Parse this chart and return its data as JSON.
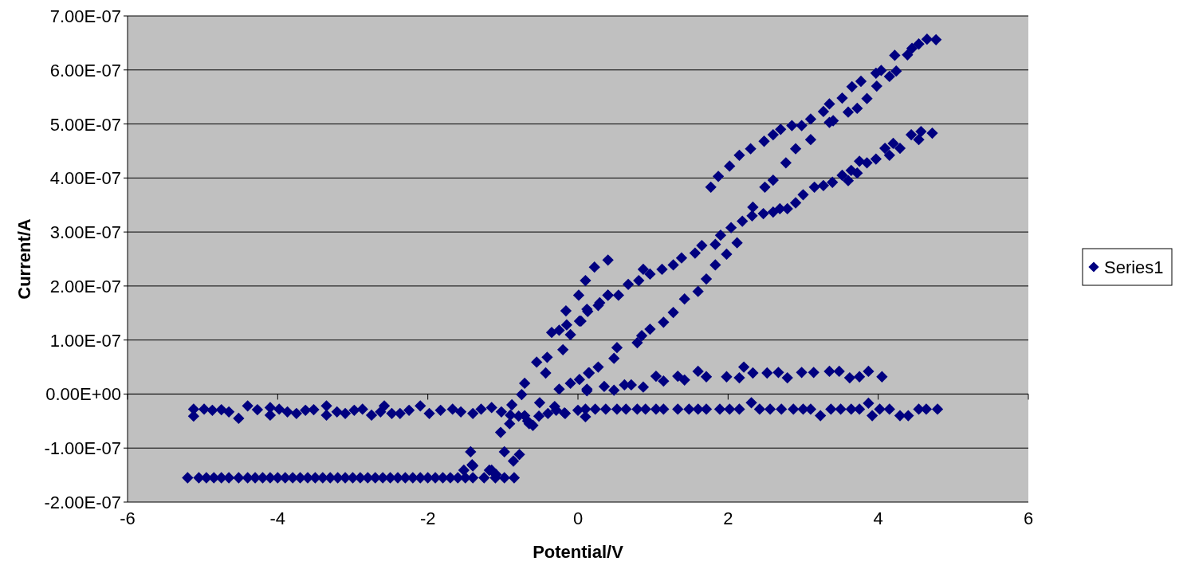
{
  "chart_data": {
    "type": "scatter",
    "xlabel": "Potential/V",
    "ylabel": "Current/A",
    "legend": "right",
    "grid": "y",
    "marker": "diamond",
    "xlim": [
      -6,
      6
    ],
    "xticks": [
      -6,
      -4,
      -2,
      0,
      2,
      4,
      6
    ],
    "ylim": [
      -2e-07,
      7e-07
    ],
    "yticks": [
      {
        "value": -2e-07,
        "label": "-2.00E-07"
      },
      {
        "value": -1e-07,
        "label": "-1.00E-07"
      },
      {
        "value": 0,
        "label": "0.00E+00"
      },
      {
        "value": 1e-07,
        "label": "1.00E-07"
      },
      {
        "value": 2e-07,
        "label": "2.00E-07"
      },
      {
        "value": 3e-07,
        "label": "3.00E-07"
      },
      {
        "value": 4e-07,
        "label": "4.00E-07"
      },
      {
        "value": 5e-07,
        "label": "5.00E-07"
      },
      {
        "value": 6e-07,
        "label": "6.00E-07"
      },
      {
        "value": 7e-07,
        "label": "7.00E-07"
      }
    ],
    "series": [
      {
        "name": "Series1",
        "color": "#000080",
        "x": [
          -5.12,
          -5.12,
          -4.98,
          -4.87,
          -4.75,
          -4.65,
          -4.52,
          -4.4,
          -4.27,
          -4.1,
          -4.1,
          -3.98,
          -3.87,
          -3.75,
          -3.63,
          -3.52,
          -3.35,
          -3.35,
          -3.21,
          -3.1,
          -2.98,
          -2.87,
          -2.75,
          -2.63,
          -2.58,
          -2.48,
          -2.37,
          -2.25,
          -2.1,
          -1.98,
          -1.83,
          -1.67,
          -1.56,
          -1.4,
          -1.29,
          -1.15,
          -1.02,
          -0.9,
          -0.79,
          -0.67,
          -0.6,
          -0.52,
          -0.4,
          -0.29,
          -0.17,
          -5.2,
          -5.05,
          -4.95,
          -4.85,
          -4.75,
          -4.65,
          -4.52,
          -4.4,
          -4.3,
          -4.2,
          -4.1,
          -4,
          -3.9,
          -3.8,
          -3.7,
          -3.6,
          -3.5,
          -3.4,
          -3.3,
          -3.2,
          -3.1,
          -3,
          -2.9,
          -2.8,
          -2.7,
          -2.6,
          -2.5,
          -2.4,
          -2.3,
          -2.2,
          -2.1,
          -2,
          -1.9,
          -1.8,
          -1.7,
          -1.6,
          -1.5,
          -1.4,
          -1.25,
          -1.1,
          -0.98,
          -0.85,
          -1.52,
          -1.4,
          -1.15,
          -1.09,
          -1.41,
          -1.43,
          -1.18,
          -1.03,
          -0.91,
          -0.98,
          -0.86,
          -0.78,
          -0.71,
          -0.55,
          -0.43,
          -0.41,
          -0.35,
          -0.25,
          -0.2,
          -0.1,
          -0.15,
          -0.16,
          0.02,
          0.01,
          0.1,
          0.22,
          0.4,
          0.12,
          0.29,
          0.4,
          -0.1,
          0.02,
          0.14,
          0.12,
          0,
          0.1,
          -0.18,
          -0.31,
          -0.51,
          -0.71,
          -0.65,
          -0.88,
          -0.75,
          -0.25,
          0.1,
          0.23,
          0.37,
          0.52,
          0.64,
          0.79,
          0.9,
          1.04,
          1.14,
          1.33,
          1.48,
          1.6,
          1.71,
          1.89,
          2.02,
          2.15,
          2.31,
          2.42,
          2.56,
          2.71,
          2.87,
          3,
          3.1,
          3.23,
          3.37,
          3.5,
          3.64,
          3.75,
          3.87,
          3.92,
          4.02,
          4.15,
          4.29,
          4.4,
          4.54,
          4.64,
          4.79,
          0.35,
          0.48,
          0.62,
          0.71,
          0.87,
          1.04,
          1.14,
          1.33,
          1.42,
          1.6,
          1.71,
          1.98,
          2.15,
          2.21,
          2.33,
          2.52,
          2.67,
          2.79,
          2.98,
          3.14,
          3.35,
          3.48,
          3.62,
          3.75,
          3.87,
          4.05,
          2.12,
          1.98,
          1.83,
          1.71,
          1.6,
          1.42,
          1.27,
          1.14,
          0.96,
          0.85,
          0.79,
          0.52,
          0.48,
          0.27,
          0.15,
          0.12,
          0.04,
          0.13,
          0.27,
          0.4,
          0.54,
          0.67,
          0.81,
          0.87,
          0.96,
          1.12,
          1.27,
          1.38,
          1.56,
          1.65,
          1.83,
          1.9,
          2.04,
          2.19,
          2.32,
          2.33,
          2.47,
          2.6,
          2.69,
          2.79,
          2.9,
          3,
          3.15,
          3.27,
          3.39,
          3.6,
          3.52,
          3.64,
          3.72,
          3.75,
          3.85,
          3.97,
          4.15,
          4.09,
          4.2,
          4.29,
          4.44,
          4.54,
          4.57,
          4.72,
          1.77,
          1.87,
          2.02,
          2.15,
          2.3,
          2.48,
          2.6,
          2.7,
          2.85,
          2.98,
          3.1,
          3.27,
          3.35,
          3.52,
          3.65,
          3.77,
          3.97,
          4.04,
          4.22,
          4.39,
          4.45,
          4.54,
          4.65,
          4.77,
          2.49,
          2.6,
          2.77,
          2.9,
          3.1,
          3.35,
          3.4,
          3.6,
          3.72,
          3.85,
          3.98,
          4.15,
          4.24
        ],
        "values": [
          -2.8e-08,
          -4.1e-08,
          -2.8e-08,
          -3e-08,
          -2.9e-08,
          -3.3e-08,
          -4.5e-08,
          -2.2e-08,
          -2.9e-08,
          -2.5e-08,
          -3.9e-08,
          -2.8e-08,
          -3.3e-08,
          -3.6e-08,
          -3e-08,
          -2.9e-08,
          -2.2e-08,
          -3.9e-08,
          -3.3e-08,
          -3.6e-08,
          -3e-08,
          -2.8e-08,
          -3.9e-08,
          -3.3e-08,
          -2.2e-08,
          -3.6e-08,
          -3.6e-08,
          -3e-08,
          -2.2e-08,
          -3.6e-08,
          -3e-08,
          -2.8e-08,
          -3.3e-08,
          -3.6e-08,
          -2.8e-08,
          -2.5e-08,
          -3.3e-08,
          -3.9e-08,
          -4.1e-08,
          -5e-08,
          -5.8e-08,
          -4.1e-08,
          -3.6e-08,
          -3e-08,
          -3.6e-08,
          -1.55e-07,
          -1.55e-07,
          -1.55e-07,
          -1.55e-07,
          -1.55e-07,
          -1.55e-07,
          -1.55e-07,
          -1.55e-07,
          -1.55e-07,
          -1.55e-07,
          -1.55e-07,
          -1.55e-07,
          -1.55e-07,
          -1.55e-07,
          -1.55e-07,
          -1.55e-07,
          -1.55e-07,
          -1.55e-07,
          -1.55e-07,
          -1.55e-07,
          -1.55e-07,
          -1.55e-07,
          -1.55e-07,
          -1.55e-07,
          -1.55e-07,
          -1.55e-07,
          -1.55e-07,
          -1.55e-07,
          -1.55e-07,
          -1.55e-07,
          -1.55e-07,
          -1.55e-07,
          -1.55e-07,
          -1.55e-07,
          -1.55e-07,
          -1.55e-07,
          -1.55e-07,
          -1.55e-07,
          -1.55e-07,
          -1.55e-07,
          -1.55e-07,
          -1.55e-07,
          -1.41e-07,
          -1.33e-07,
          -1.41e-07,
          -1.49e-07,
          -1.31e-07,
          -1.07e-07,
          -1.41e-07,
          -7.1e-08,
          -5.5e-08,
          -1.07e-07,
          -1.24e-07,
          -1.12e-07,
          2e-08,
          5.9e-08,
          3.9e-08,
          6.8e-08,
          1.14e-07,
          1.18e-07,
          8.2e-08,
          1.1e-07,
          1.28e-07,
          1.54e-07,
          1.35e-07,
          1.83e-07,
          2.1e-07,
          2.35e-07,
          2.48e-07,
          1.57e-07,
          1.69e-07,
          1.83e-07,
          2e-08,
          2.7e-08,
          3.9e-08,
          9e-09,
          -3e-08,
          -4.2e-08,
          -3.5e-08,
          -2.3e-08,
          -1.6e-08,
          -4e-08,
          -5.5e-08,
          -2e-08,
          -1e-09,
          9e-09,
          -2.8e-08,
          -2.8e-08,
          -2.8e-08,
          -2.8e-08,
          -2.8e-08,
          -2.8e-08,
          -2.8e-08,
          -2.8e-08,
          -2.8e-08,
          -2.8e-08,
          -2.8e-08,
          -2.8e-08,
          -2.8e-08,
          -2.8e-08,
          -2.8e-08,
          -2.8e-08,
          -1.6e-08,
          -2.8e-08,
          -2.8e-08,
          -2.8e-08,
          -2.8e-08,
          -2.8e-08,
          -2.8e-08,
          -4e-08,
          -2.8e-08,
          -2.8e-08,
          -2.8e-08,
          -2.8e-08,
          -1.7e-08,
          -4e-08,
          -2.8e-08,
          -2.8e-08,
          -4e-08,
          -4e-08,
          -2.8e-08,
          -2.8e-08,
          -2.8e-08,
          1.4e-08,
          7e-09,
          1.7e-08,
          1.7e-08,
          1.3e-08,
          3.3e-08,
          2.4e-08,
          3.3e-08,
          2.6e-08,
          4.2e-08,
          3.2e-08,
          3.2e-08,
          3e-08,
          5e-08,
          3.9e-08,
          3.9e-08,
          4e-08,
          3e-08,
          4e-08,
          4e-08,
          4.2e-08,
          4.2e-08,
          3e-08,
          3.2e-08,
          4.2e-08,
          3.2e-08,
          2.8e-07,
          2.59e-07,
          2.39e-07,
          2.13e-07,
          1.9e-07,
          1.76e-07,
          1.51e-07,
          1.33e-07,
          1.2e-07,
          1.08e-07,
          9.5e-08,
          8.6e-08,
          6.6e-08,
          5e-08,
          3.9e-08,
          6e-09,
          1.35e-07,
          1.53e-07,
          1.64e-07,
          1.83e-07,
          1.83e-07,
          2.03e-07,
          2.1e-07,
          2.31e-07,
          2.22e-07,
          2.31e-07,
          2.39e-07,
          2.52e-07,
          2.61e-07,
          2.75e-07,
          2.77e-07,
          2.94e-07,
          3.08e-07,
          3.2e-07,
          3.3e-07,
          3.46e-07,
          3.34e-07,
          3.37e-07,
          3.43e-07,
          3.43e-07,
          3.54e-07,
          3.69e-07,
          3.83e-07,
          3.86e-07,
          3.92e-07,
          3.95e-07,
          4.05e-07,
          4.14e-07,
          4.09e-07,
          4.31e-07,
          4.28e-07,
          4.35e-07,
          4.42e-07,
          4.55e-07,
          4.64e-07,
          4.55e-07,
          4.8e-07,
          4.71e-07,
          4.86e-07,
          4.83e-07,
          3.83e-07,
          4.03e-07,
          4.22e-07,
          4.42e-07,
          4.54e-07,
          4.68e-07,
          4.8e-07,
          4.9e-07,
          4.97e-07,
          4.97e-07,
          5.09e-07,
          5.23e-07,
          5.37e-07,
          5.48e-07,
          5.69e-07,
          5.79e-07,
          5.94e-07,
          5.99e-07,
          6.27e-07,
          6.28e-07,
          6.4e-07,
          6.48e-07,
          6.57e-07,
          6.56e-07,
          3.83e-07,
          3.96e-07,
          4.28e-07,
          4.54e-07,
          4.71e-07,
          5.03e-07,
          5.06e-07,
          5.22e-07,
          5.29e-07,
          5.47e-07,
          5.7e-07,
          5.88e-07,
          5.98e-07
        ]
      }
    ]
  }
}
